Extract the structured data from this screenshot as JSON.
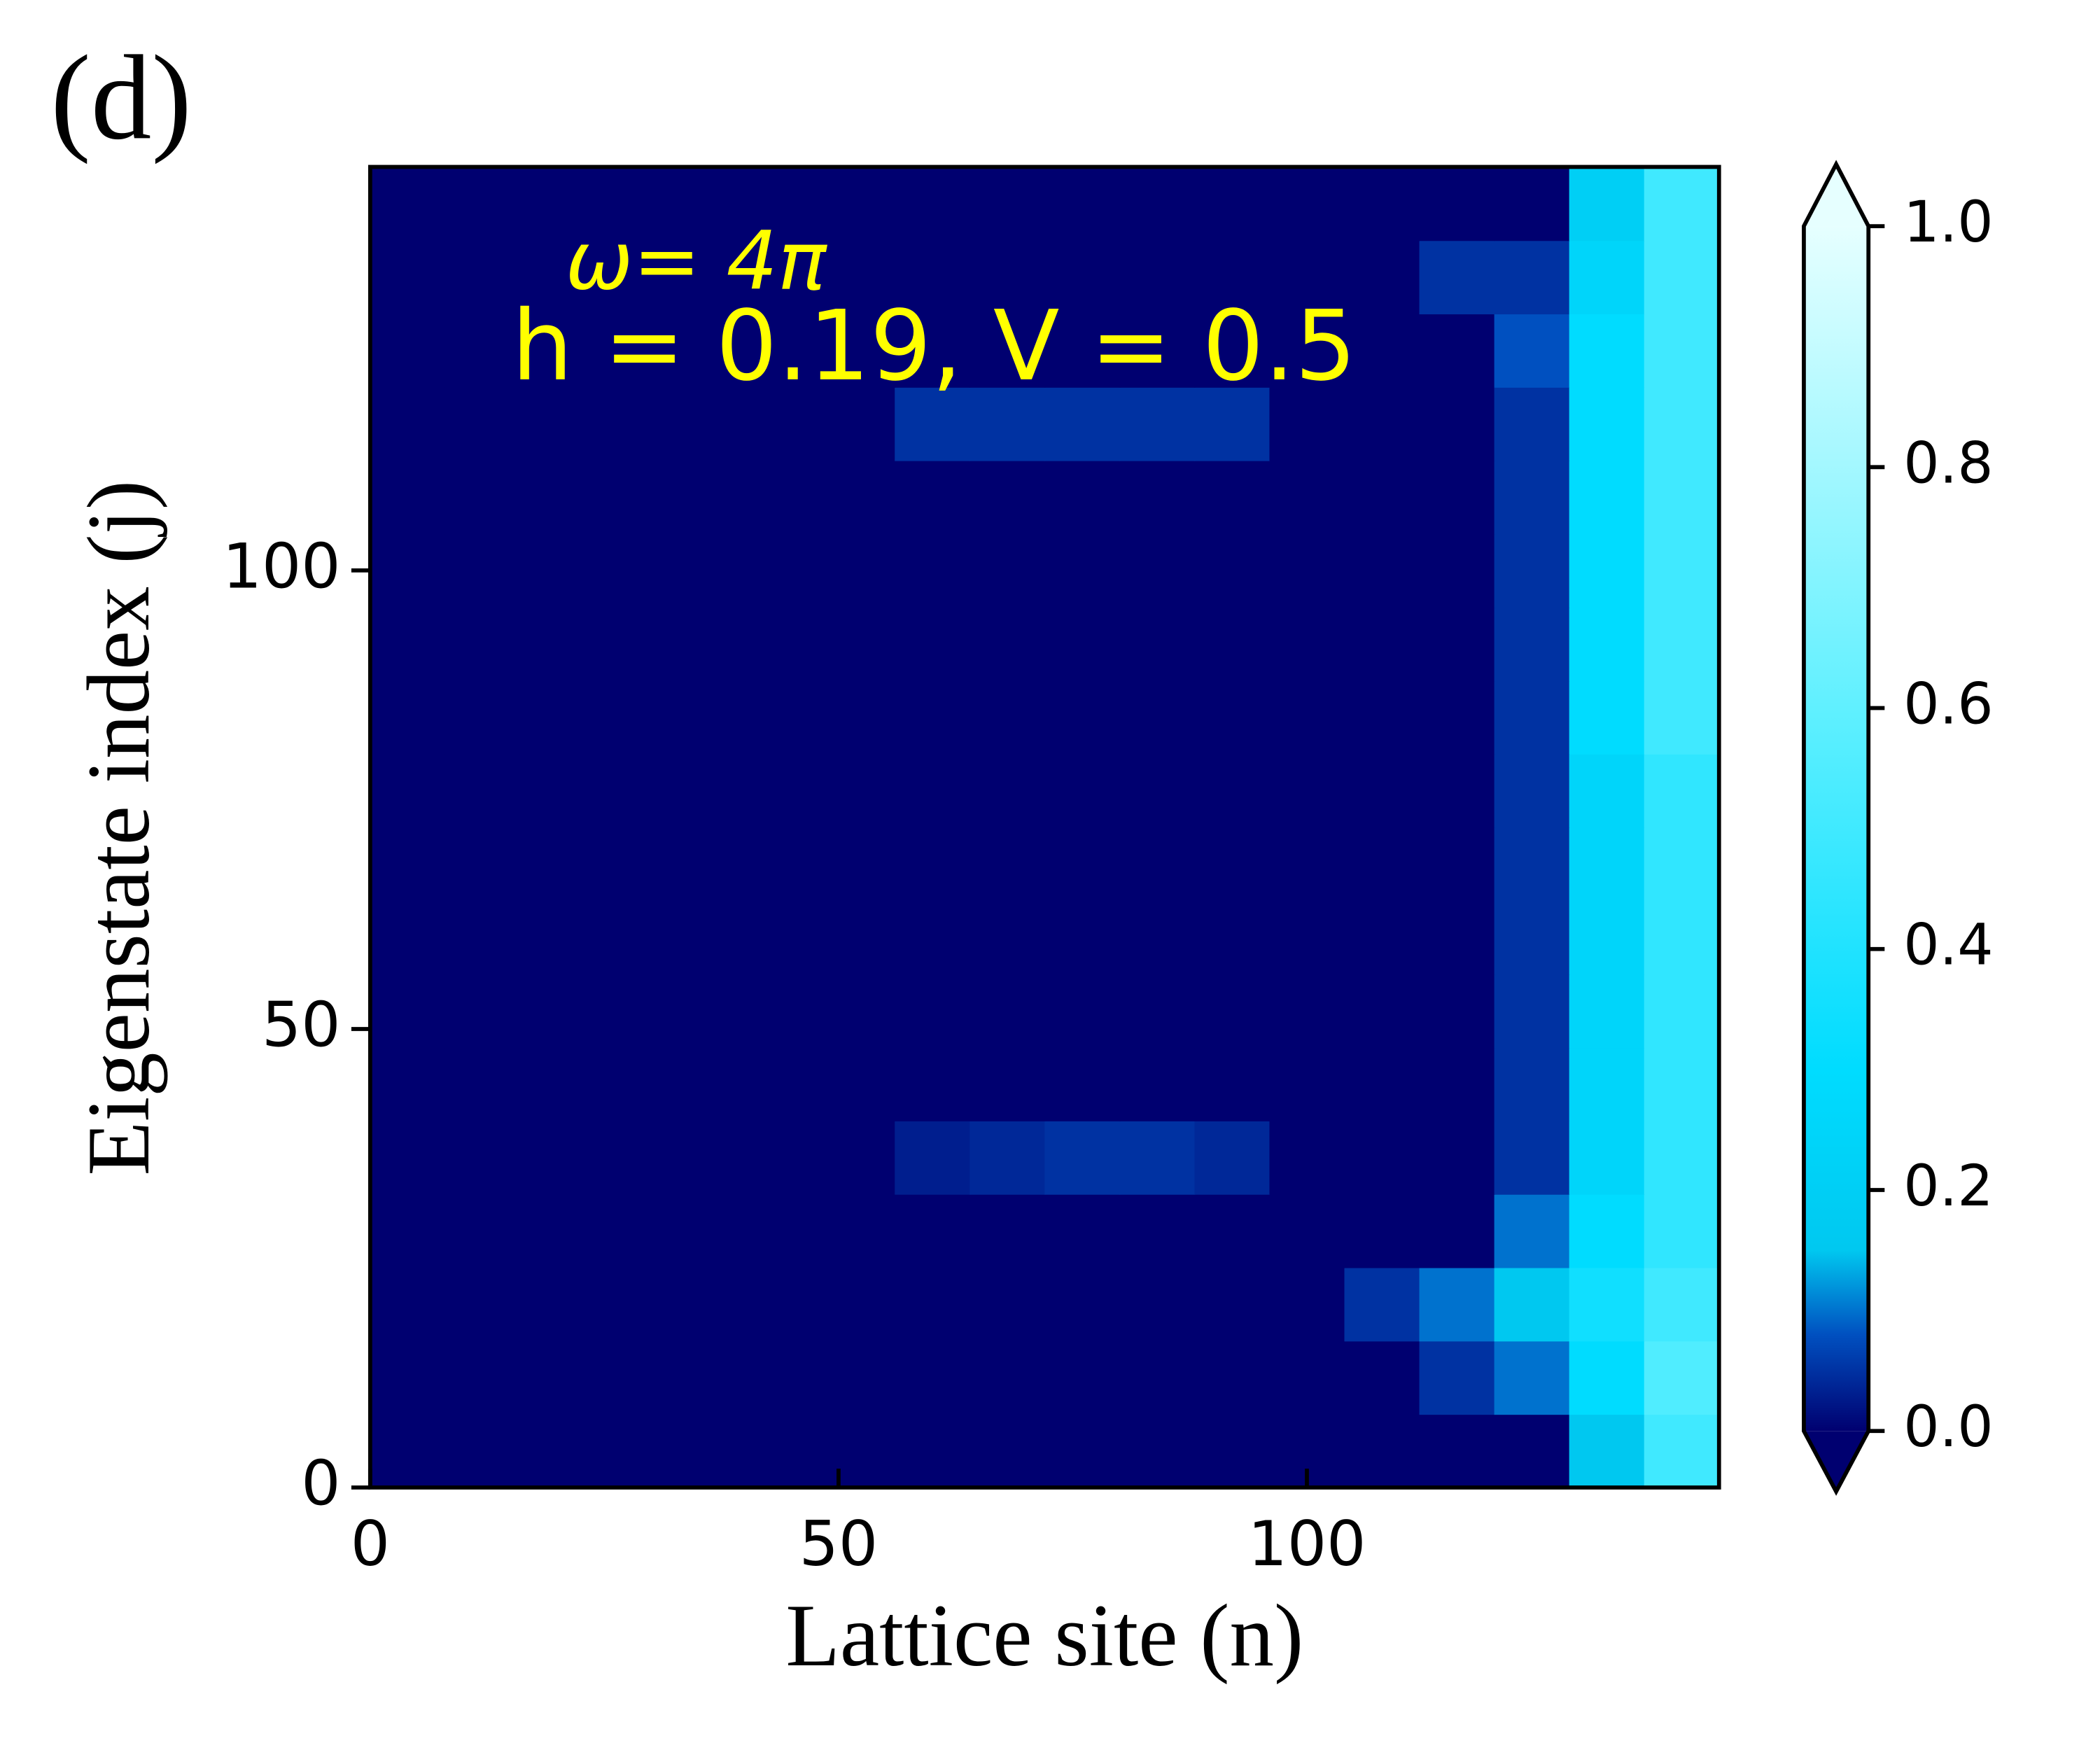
{
  "chart_data": {
    "type": "heatmap",
    "panel_label": "(d)",
    "xlabel": "Lattice site (n)",
    "ylabel": "Eigenstate index (j)",
    "annotations": [
      "ω= 4π",
      "h = 0.19, V = 0.5"
    ],
    "annotation_color": "#ffff00",
    "xlim": [
      0,
      144
    ],
    "ylim": [
      0,
      144
    ],
    "xticks": [
      0,
      50,
      100
    ],
    "yticks": [
      0,
      50,
      100
    ],
    "x_edges": [
      0,
      8,
      16,
      24,
      32,
      40,
      48,
      56,
      64,
      72,
      80,
      88,
      96,
      104,
      112,
      120,
      128,
      136,
      144
    ],
    "y_edges": [
      0,
      8,
      16,
      24,
      32,
      40,
      48,
      56,
      64,
      72,
      80,
      88,
      96,
      104,
      112,
      120,
      128,
      136,
      144
    ],
    "z": [
      [
        0,
        0,
        0,
        0,
        0,
        0,
        0,
        0,
        0,
        0,
        0,
        0,
        0,
        0,
        0,
        0,
        0.15,
        0.5
      ],
      [
        0,
        0,
        0,
        0,
        0,
        0,
        0,
        0,
        0,
        0,
        0,
        0,
        0,
        0,
        0.05,
        0.1,
        0.3,
        0.55
      ],
      [
        0,
        0,
        0,
        0,
        0,
        0,
        0,
        0,
        0,
        0,
        0,
        0,
        0,
        0.05,
        0.1,
        0.15,
        0.35,
        0.5
      ],
      [
        0,
        0,
        0,
        0,
        0,
        0,
        0,
        0,
        0,
        0,
        0,
        0,
        0,
        0,
        0,
        0.1,
        0.3,
        0.45
      ],
      [
        0,
        0,
        0,
        0,
        0,
        0,
        0,
        0.03,
        0.04,
        0.05,
        0.05,
        0.04,
        0,
        0,
        0,
        0.05,
        0.25,
        0.45
      ],
      [
        0,
        0,
        0,
        0,
        0,
        0,
        0,
        0,
        0,
        0,
        0,
        0,
        0,
        0,
        0,
        0.05,
        0.25,
        0.45
      ],
      [
        0,
        0,
        0,
        0,
        0,
        0,
        0,
        0,
        0,
        0,
        0,
        0,
        0,
        0,
        0,
        0.05,
        0.25,
        0.45
      ],
      [
        0,
        0,
        0,
        0,
        0,
        0,
        0,
        0,
        0,
        0,
        0,
        0,
        0,
        0,
        0,
        0.05,
        0.25,
        0.45
      ],
      [
        0,
        0,
        0,
        0,
        0,
        0,
        0,
        0,
        0,
        0,
        0,
        0,
        0,
        0,
        0,
        0.05,
        0.25,
        0.45
      ],
      [
        0,
        0,
        0,
        0,
        0,
        0,
        0,
        0,
        0,
        0,
        0,
        0,
        0,
        0,
        0,
        0.05,
        0.25,
        0.45
      ],
      [
        0,
        0,
        0,
        0,
        0,
        0,
        0,
        0,
        0,
        0,
        0,
        0,
        0,
        0,
        0,
        0.05,
        0.3,
        0.5
      ],
      [
        0,
        0,
        0,
        0,
        0,
        0,
        0,
        0,
        0,
        0,
        0,
        0,
        0,
        0,
        0,
        0.05,
        0.3,
        0.5
      ],
      [
        0,
        0,
        0,
        0,
        0,
        0,
        0,
        0,
        0,
        0,
        0,
        0,
        0,
        0,
        0,
        0.05,
        0.3,
        0.5
      ],
      [
        0,
        0,
        0,
        0,
        0,
        0,
        0,
        0,
        0,
        0,
        0,
        0,
        0,
        0,
        0,
        0.05,
        0.3,
        0.5
      ],
      [
        0,
        0,
        0,
        0,
        0,
        0,
        0,
        0.05,
        0.05,
        0.05,
        0.05,
        0.05,
        0,
        0,
        0,
        0.05,
        0.3,
        0.5
      ],
      [
        0,
        0,
        0,
        0,
        0,
        0,
        0,
        0,
        0,
        0,
        0,
        0,
        0,
        0,
        0,
        0.08,
        0.3,
        0.5
      ],
      [
        0,
        0,
        0,
        0,
        0,
        0,
        0,
        0,
        0,
        0,
        0,
        0,
        0,
        0,
        0.05,
        0.05,
        0.25,
        0.5
      ],
      [
        0,
        0,
        0,
        0,
        0,
        0,
        0,
        0,
        0,
        0,
        0,
        0,
        0,
        0,
        0,
        0,
        0.2,
        0.5
      ]
    ],
    "clim": [
      0,
      1
    ],
    "colorscale": [
      [
        0,
        "#000070"
      ],
      [
        0.08,
        "#0050c0"
      ],
      [
        0.15,
        "#00c8f0"
      ],
      [
        0.3,
        "#00dcff"
      ],
      [
        0.6,
        "#60f0ff"
      ],
      [
        1,
        "#e6ffff"
      ]
    ],
    "cbar_ticks": [
      {
        "value": 0,
        "label": "0.0"
      },
      {
        "value": 0.2,
        "label": "0.2"
      },
      {
        "value": 0.4,
        "label": "0.4"
      },
      {
        "value": 0.6,
        "label": "0.6"
      },
      {
        "value": 0.8,
        "label": "0.8"
      },
      {
        "value": 1,
        "label": "1.0"
      }
    ]
  }
}
